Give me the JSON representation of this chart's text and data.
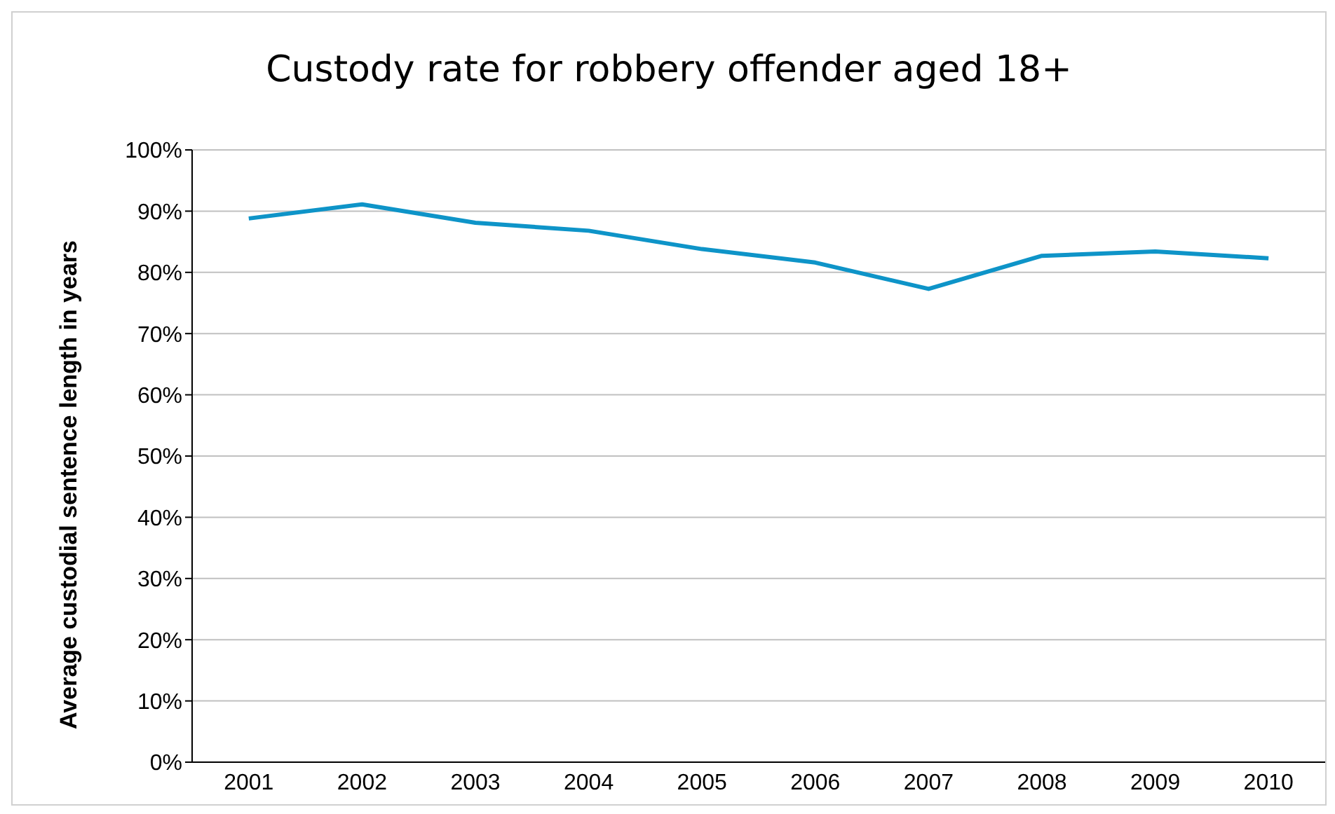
{
  "chart_data": {
    "type": "line",
    "title": "Custody rate for robbery offender aged 18+",
    "ylabel": "Average custodial sentence length in years",
    "categories": [
      "2001",
      "2002",
      "2003",
      "2004",
      "2005",
      "2006",
      "2007",
      "2008",
      "2009",
      "2010"
    ],
    "series": [
      {
        "color": "#0e94c8",
        "values": [
          88.8,
          91.1,
          88.1,
          86.8,
          83.8,
          81.6,
          77.3,
          82.7,
          83.4,
          82.3
        ]
      }
    ],
    "ylim": [
      0,
      100
    ],
    "yticks": [
      {
        "value": 0,
        "label": "0%"
      },
      {
        "value": 10,
        "label": "10%"
      },
      {
        "value": 20,
        "label": "20%"
      },
      {
        "value": 30,
        "label": "30%"
      },
      {
        "value": 40,
        "label": "40%"
      },
      {
        "value": 50,
        "label": "50%"
      },
      {
        "value": 60,
        "label": "60%"
      },
      {
        "value": 70,
        "label": "70%"
      },
      {
        "value": 80,
        "label": "80%"
      },
      {
        "value": 90,
        "label": "90%"
      },
      {
        "value": 100,
        "label": "100%"
      }
    ],
    "grid": "y",
    "legend": false,
    "marker": "none",
    "line_style": "solid"
  }
}
